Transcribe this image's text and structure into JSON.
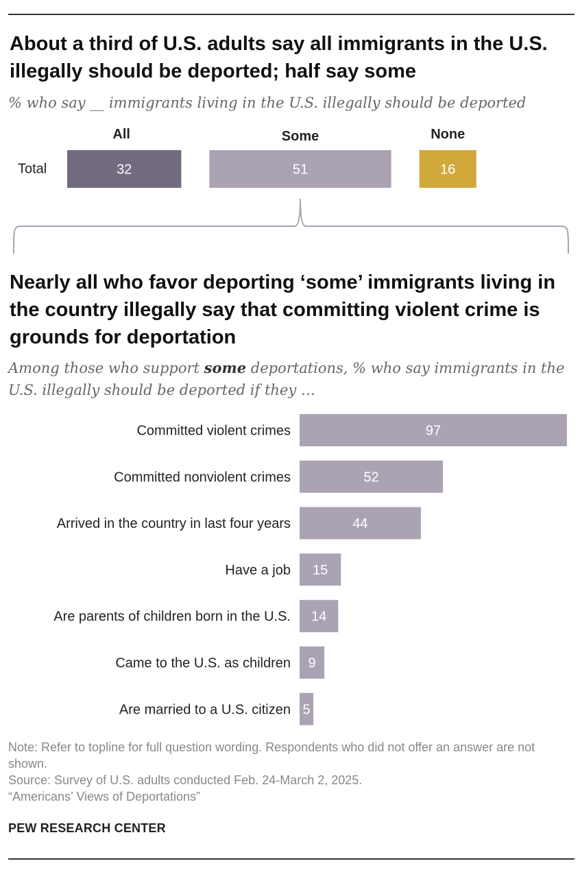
{
  "chart_data": [
    {
      "type": "bar",
      "title": "About a third of U.S. adults say all immigrants in the U.S. illegally should be deported; half say some",
      "subtitle": "% who say __ immigrants living in the U.S. illegally should be deported",
      "categories": [
        "Total"
      ],
      "series": [
        {
          "name": "All",
          "values": [
            32
          ],
          "color": "#736b80"
        },
        {
          "name": "Some",
          "values": [
            51
          ],
          "color": "#aba3b3"
        },
        {
          "name": "None",
          "values": [
            16
          ],
          "color": "#d1a93a"
        }
      ]
    },
    {
      "type": "bar",
      "orientation": "horizontal",
      "title": "Nearly all who favor deporting ‘some’ immigrants living in the country illegally say that committing violent crime is grounds for deportation",
      "subtitle": {
        "before": "Among those who support ",
        "emphasis": "some",
        "after": " deportations, % who say immigrants in the U.S. illegally should be deported if they …"
      },
      "categories": [
        "Committed violent crimes",
        "Committed nonviolent crimes",
        "Arrived in the country in last four years",
        "Have a job",
        "Are parents of children born in the U.S.",
        "Came to the U.S. as children",
        "Are married to a U.S. citizen"
      ],
      "values": [
        97,
        52,
        44,
        15,
        14,
        9,
        5
      ],
      "color": "#aba3b3",
      "xlim": [
        0,
        100
      ]
    }
  ],
  "footer": {
    "note": "Note: Refer to topline for full question wording. Respondents who did not offer an answer are not shown.",
    "source": "Source: Survey of U.S. adults conducted Feb. 24-March 2, 2025.",
    "report": "“Americans’ Views of Deportations”",
    "brand": "PEW RESEARCH CENTER"
  }
}
